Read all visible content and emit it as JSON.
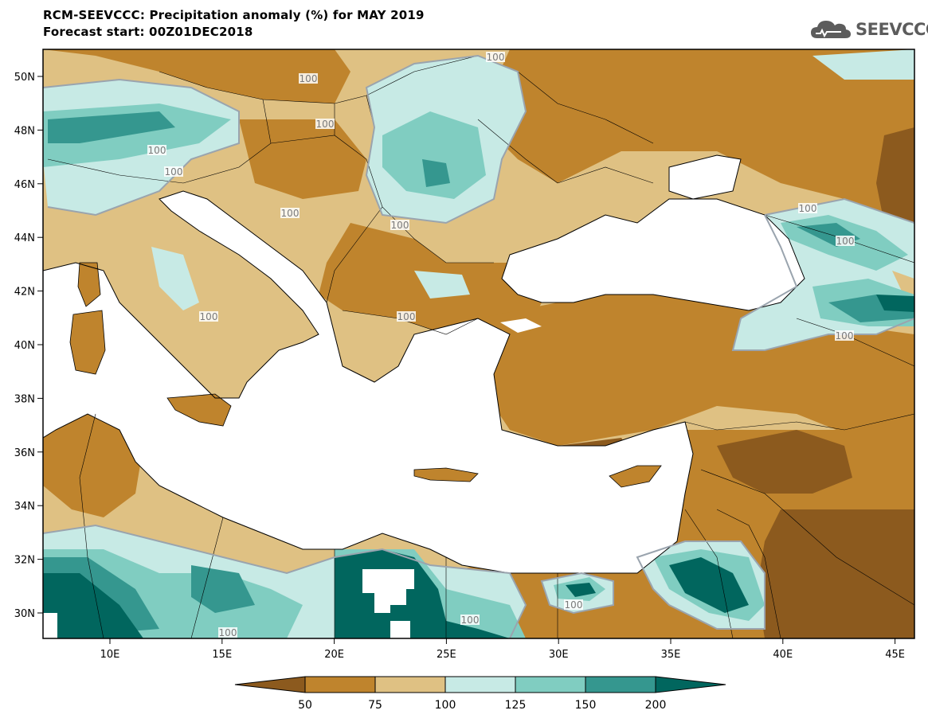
{
  "header": {
    "title_line1": "RCM-SEEVCCC: Precipitation anomaly (%) for MAY 2019",
    "title_line2": "Forecast start: 00Z01DEC2018",
    "logo_text": "SEEVCCC"
  },
  "map": {
    "lon_labels": [
      "10E",
      "15E",
      "20E",
      "25E",
      "30E",
      "35E",
      "40E",
      "45E"
    ],
    "lat_labels": [
      "50N",
      "48N",
      "46N",
      "44N",
      "42N",
      "40N",
      "38N",
      "36N",
      "34N",
      "32N",
      "30N"
    ],
    "contour_label": "100",
    "colors": {
      "lt50": "#8c5a1e",
      "50_75": "#bf842d",
      "75_100": "#dfc183",
      "100_125": "#c7eae5",
      "125_150": "#80cdc1",
      "150_200": "#35978f",
      "gt200": "#01665e",
      "sea": "#ffffff"
    }
  },
  "colorbar": {
    "levels": [
      "50",
      "75",
      "100",
      "125",
      "150",
      "200"
    ]
  }
}
